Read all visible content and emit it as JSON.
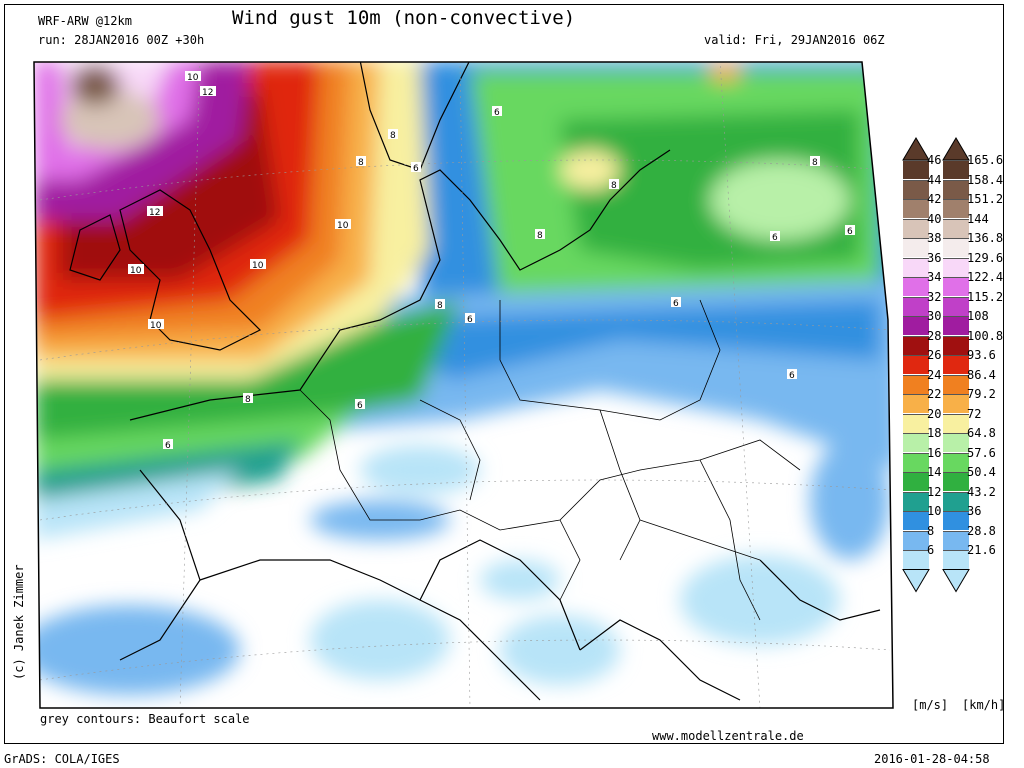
{
  "header": {
    "model": "WRF-ARW @12km",
    "run": "run: 28JAN2016 00Z +30h",
    "title": "Wind gust 10m (non-convective)",
    "valid": "valid: Fri, 29JAN2016 06Z"
  },
  "footer": {
    "note": "grey contours: Beaufort scale",
    "url": "www.modellzentrale.de",
    "grads": "GrADS: COLA/IGES",
    "timestamp": "2016-01-28-04:58",
    "copyright": "(c) Janek Zimmer"
  },
  "legend": {
    "units_ms": "[m/s]",
    "units_kmh": "[km/h]",
    "levels": [
      {
        "ms": "46",
        "kmh": "165.6",
        "color": "#5a3a2a"
      },
      {
        "ms": "44",
        "kmh": "158.4",
        "color": "#7a5a48"
      },
      {
        "ms": "42",
        "kmh": "151.2",
        "color": "#a0806c"
      },
      {
        "ms": "40",
        "kmh": "144",
        "color": "#d8c4b8"
      },
      {
        "ms": "38",
        "kmh": "136.8",
        "color": "#f4ecec"
      },
      {
        "ms": "36",
        "kmh": "129.6",
        "color": "#f8d8f8"
      },
      {
        "ms": "34",
        "kmh": "122.4",
        "color": "#e070e8"
      },
      {
        "ms": "32",
        "kmh": "115.2",
        "color": "#c040c8"
      },
      {
        "ms": "30",
        "kmh": "108",
        "color": "#a01ca0"
      },
      {
        "ms": "28",
        "kmh": "100.8",
        "color": "#a01010"
      },
      {
        "ms": "26",
        "kmh": "93.6",
        "color": "#e02810"
      },
      {
        "ms": "24",
        "kmh": "86.4",
        "color": "#f08020"
      },
      {
        "ms": "22",
        "kmh": "79.2",
        "color": "#f8b048"
      },
      {
        "ms": "20",
        "kmh": "72",
        "color": "#f8f0a0"
      },
      {
        "ms": "18",
        "kmh": "64.8",
        "color": "#b8f0a8"
      },
      {
        "ms": "16",
        "kmh": "57.6",
        "color": "#68d860"
      },
      {
        "ms": "14",
        "kmh": "50.4",
        "color": "#30b040"
      },
      {
        "ms": "12",
        "kmh": "43.2",
        "color": "#20a090"
      },
      {
        "ms": "10",
        "kmh": "36",
        "color": "#3090e0"
      },
      {
        "ms": "8",
        "kmh": "28.8",
        "color": "#78b8f0"
      },
      {
        "ms": "6",
        "kmh": "21.6",
        "color": "#b8e4f8"
      }
    ]
  },
  "map": {
    "contour_labels": [
      "10",
      "12",
      "12",
      "10",
      "10",
      "10",
      "10",
      "8",
      "8",
      "8",
      "6",
      "6",
      "6",
      "6",
      "6",
      "8",
      "8",
      "8",
      "6",
      "6",
      "6",
      "6",
      "8"
    ]
  }
}
